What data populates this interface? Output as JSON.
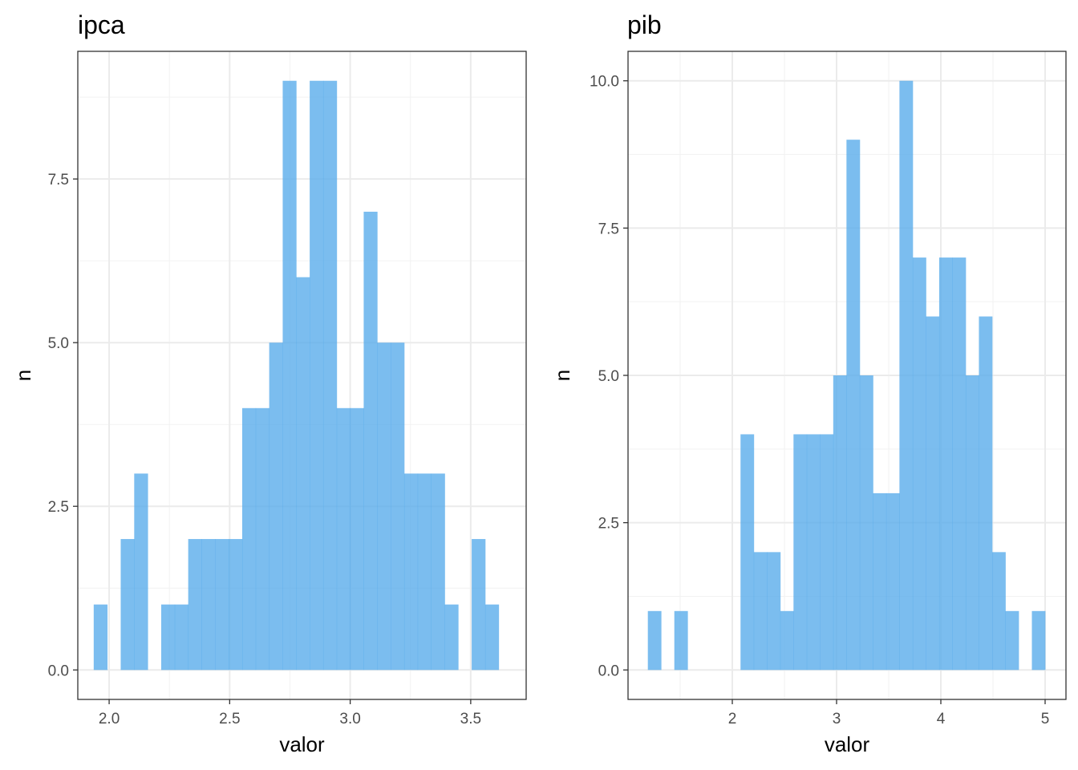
{
  "chart_data": [
    {
      "type": "bar",
      "title": "ipca",
      "xlabel": "valor",
      "ylabel": "n",
      "bar_color": "#56aaeb",
      "xlim": [
        1.87,
        3.73
      ],
      "ylim": [
        -0.45,
        9.45
      ],
      "xticks": [
        2.0,
        2.5,
        3.0,
        3.5
      ],
      "xtick_labels": [
        "2.0",
        "2.5",
        "3.0",
        "3.5"
      ],
      "yticks": [
        0,
        2.5,
        5,
        7.5
      ],
      "ytick_labels": [
        "0.0",
        "2.5",
        "5.0",
        "7.5"
      ],
      "bin_edges": [
        1.936,
        1.992,
        2.048,
        2.104,
        2.16,
        2.216,
        2.272,
        2.328,
        2.384,
        2.44,
        2.496,
        2.552,
        2.608,
        2.664,
        2.72,
        2.776,
        2.832,
        2.888,
        2.944,
        3.0,
        3.056,
        3.112,
        3.168,
        3.224,
        3.28,
        3.336,
        3.392,
        3.448,
        3.504,
        3.56,
        3.616
      ],
      "values": [
        1,
        0,
        2,
        3,
        0,
        1,
        1,
        2,
        2,
        2,
        2,
        4,
        4,
        5,
        9,
        6,
        9,
        9,
        4,
        4,
        7,
        5,
        5,
        3,
        3,
        3,
        1,
        0,
        2,
        1
      ]
    },
    {
      "type": "bar",
      "title": "pib",
      "xlabel": "valor",
      "ylabel": "n",
      "bar_color": "#56aaeb",
      "xlim": [
        1.0,
        5.2
      ],
      "ylim": [
        -0.5,
        10.5
      ],
      "xticks": [
        2,
        3,
        4,
        5
      ],
      "xtick_labels": [
        "2",
        "3",
        "4",
        "5"
      ],
      "yticks": [
        0,
        2.5,
        5,
        7.5,
        10
      ],
      "ytick_labels": [
        "0.0",
        "2.5",
        "5.0",
        "7.5",
        "10.0"
      ],
      "bin_edges": [
        1.19,
        1.317,
        1.444,
        1.571,
        1.698,
        1.825,
        1.952,
        2.079,
        2.206,
        2.333,
        2.46,
        2.587,
        2.714,
        2.841,
        2.968,
        3.095,
        3.222,
        3.349,
        3.476,
        3.603,
        3.73,
        3.857,
        3.984,
        4.111,
        4.238,
        4.365,
        4.492,
        4.619,
        4.746,
        4.873,
        5.0
      ],
      "values": [
        1,
        0,
        1,
        0,
        0,
        0,
        0,
        4,
        2,
        2,
        1,
        4,
        4,
        4,
        5,
        9,
        5,
        3,
        3,
        10,
        7,
        6,
        7,
        7,
        5,
        6,
        2,
        1,
        0,
        1
      ]
    }
  ]
}
